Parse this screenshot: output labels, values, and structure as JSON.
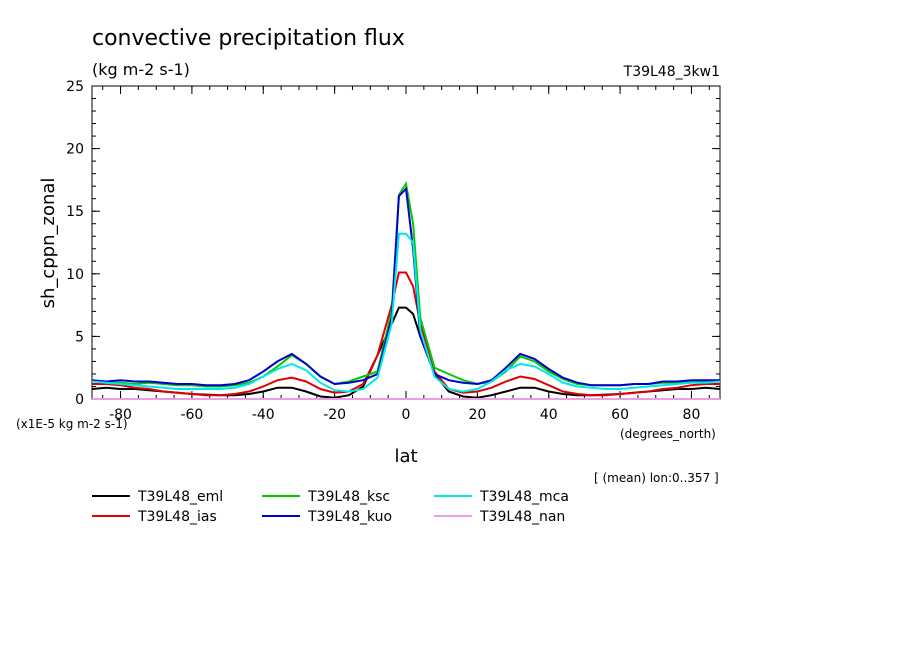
{
  "chart_data": {
    "type": "line",
    "title": "convective precipitation flux",
    "subtitle": "(kg m-2 s-1)",
    "run_label": "T39L48_3kw1",
    "ylabel": "sh_cppn_zonal",
    "xlabel": "lat",
    "x_unit_label": "(degrees_north)",
    "y_unit_label": "(x1E-5 kg m-2 s-1)",
    "footnote": "[ (mean) lon:0..357 ]",
    "xlim": [
      -88,
      88
    ],
    "ylim": [
      0,
      25
    ],
    "x_ticks": [
      -80,
      -60,
      -40,
      -20,
      0,
      20,
      40,
      60,
      80
    ],
    "x_tick_labels": [
      "-80",
      "-60",
      "-40",
      "-20",
      "0",
      "20",
      "40",
      "60",
      "80"
    ],
    "y_ticks": [
      0,
      5,
      10,
      15,
      20,
      25
    ],
    "y_tick_labels": [
      "0",
      "5",
      "10",
      "15",
      "20",
      "25"
    ],
    "x": [
      -88,
      -84,
      -80,
      -76,
      -72,
      -68,
      -64,
      -60,
      -56,
      -52,
      -48,
      -44,
      -40,
      -36,
      -32,
      -28,
      -24,
      -20,
      -16,
      -12,
      -8,
      -4,
      -2,
      0,
      2,
      4,
      8,
      12,
      16,
      20,
      24,
      28,
      32,
      36,
      40,
      44,
      48,
      52,
      56,
      60,
      64,
      68,
      72,
      76,
      80,
      84,
      88
    ],
    "series": [
      {
        "name": "T39L48_eml",
        "color": "#000000",
        "values": [
          0.8,
          0.9,
          0.8,
          0.8,
          0.7,
          0.6,
          0.5,
          0.4,
          0.35,
          0.3,
          0.3,
          0.4,
          0.6,
          0.9,
          0.9,
          0.6,
          0.2,
          0.1,
          0.3,
          1.0,
          3.5,
          6.0,
          7.3,
          7.3,
          6.8,
          5.0,
          2.0,
          0.6,
          0.2,
          0.1,
          0.3,
          0.6,
          0.9,
          0.9,
          0.6,
          0.4,
          0.3,
          0.3,
          0.35,
          0.4,
          0.5,
          0.6,
          0.7,
          0.8,
          0.8,
          0.9,
          0.8
        ]
      },
      {
        "name": "T39L48_ias",
        "color": "#e00000",
        "values": [
          1.2,
          1.2,
          1.1,
          0.9,
          0.8,
          0.6,
          0.5,
          0.4,
          0.3,
          0.3,
          0.4,
          0.6,
          1.0,
          1.5,
          1.7,
          1.4,
          0.8,
          0.5,
          0.6,
          1.2,
          3.5,
          7.5,
          10.1,
          10.1,
          9.0,
          6.0,
          2.2,
          0.8,
          0.5,
          0.6,
          0.9,
          1.4,
          1.8,
          1.6,
          1.1,
          0.6,
          0.4,
          0.3,
          0.3,
          0.4,
          0.5,
          0.6,
          0.8,
          0.9,
          1.1,
          1.2,
          1.2
        ]
      },
      {
        "name": "T39L48_ksc",
        "color": "#00cc00",
        "values": [
          1.5,
          1.3,
          1.3,
          1.2,
          1.3,
          1.2,
          1.1,
          1.1,
          1.0,
          1.0,
          1.1,
          1.3,
          1.8,
          2.6,
          3.5,
          2.8,
          1.8,
          1.2,
          1.4,
          1.8,
          2.2,
          7.0,
          16.3,
          17.2,
          14.0,
          6.5,
          2.5,
          2.0,
          1.5,
          1.2,
          1.4,
          2.2,
          3.4,
          3.0,
          2.2,
          1.6,
          1.2,
          1.1,
          1.1,
          1.1,
          1.2,
          1.2,
          1.3,
          1.3,
          1.4,
          1.4,
          1.5
        ]
      },
      {
        "name": "T39L48_kuo",
        "color": "#0000cc",
        "values": [
          1.5,
          1.4,
          1.5,
          1.4,
          1.4,
          1.3,
          1.2,
          1.2,
          1.1,
          1.1,
          1.2,
          1.5,
          2.2,
          3.0,
          3.6,
          2.8,
          1.8,
          1.2,
          1.3,
          1.5,
          2.0,
          6.5,
          16.2,
          16.8,
          12.0,
          5.0,
          2.0,
          1.5,
          1.3,
          1.2,
          1.5,
          2.5,
          3.6,
          3.2,
          2.4,
          1.7,
          1.3,
          1.1,
          1.1,
          1.1,
          1.2,
          1.2,
          1.4,
          1.4,
          1.5,
          1.5,
          1.5
        ]
      },
      {
        "name": "T39L48_mca",
        "color": "#00e8e8",
        "values": [
          1.4,
          1.3,
          1.2,
          1.1,
          1.0,
          0.9,
          0.8,
          0.8,
          0.8,
          0.8,
          0.9,
          1.2,
          1.8,
          2.4,
          2.8,
          2.3,
          1.3,
          0.7,
          0.6,
          0.8,
          1.7,
          6.0,
          13.2,
          13.2,
          12.5,
          5.5,
          1.8,
          0.8,
          0.6,
          0.8,
          1.4,
          2.3,
          2.8,
          2.6,
          2.0,
          1.3,
          1.0,
          0.9,
          0.8,
          0.8,
          0.9,
          1.0,
          1.1,
          1.2,
          1.3,
          1.3,
          1.4
        ]
      },
      {
        "name": "T39L48_nan",
        "color": "#e8a0e0",
        "values": [
          0,
          0,
          0,
          0,
          0,
          0,
          0,
          0,
          0,
          0,
          0,
          0,
          0,
          0,
          0,
          0,
          0,
          0,
          0,
          0,
          0,
          0,
          0,
          0,
          0,
          0,
          0,
          0,
          0,
          0,
          0,
          0,
          0,
          0,
          0,
          0,
          0,
          0,
          0,
          0,
          0,
          0,
          0,
          0,
          0,
          0,
          0
        ]
      }
    ],
    "legend_position": "bottom"
  }
}
